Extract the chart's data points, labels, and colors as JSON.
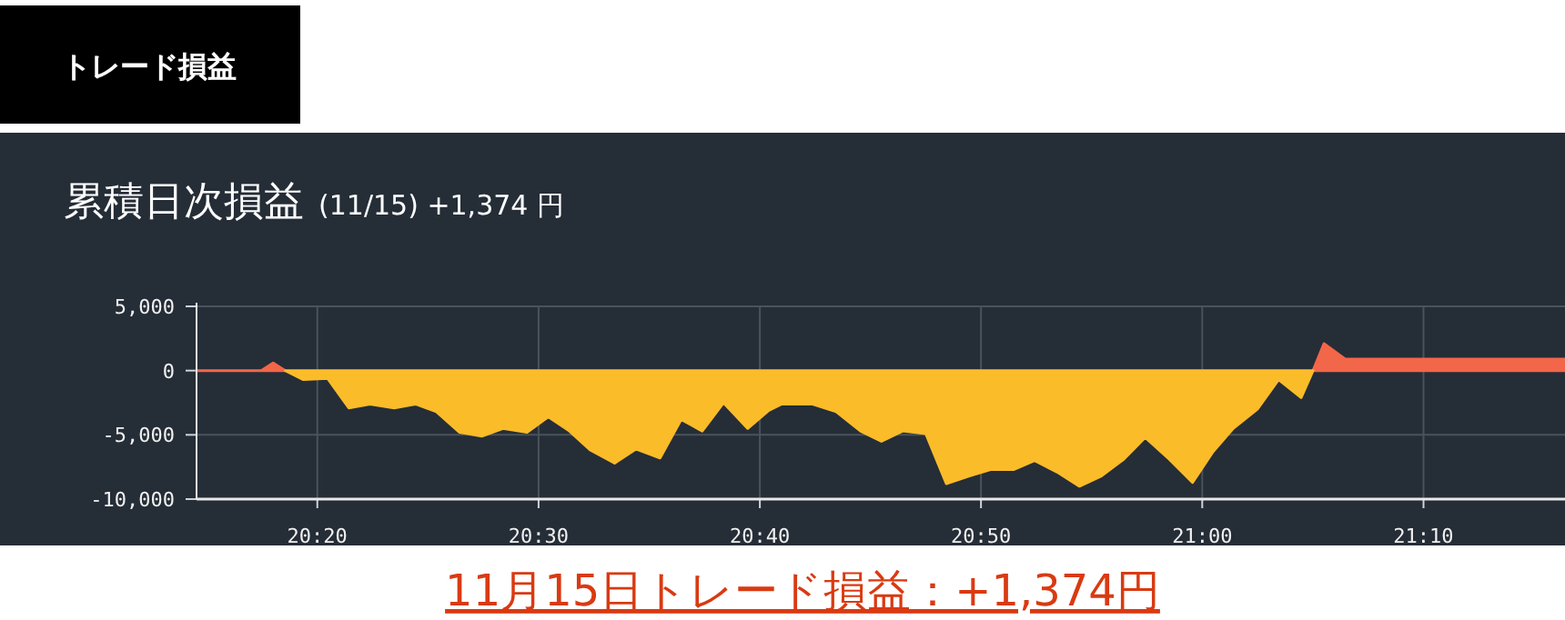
{
  "chart_data": {
    "type": "area",
    "title": "累積日次損益",
    "subtitle": "(11/15) +1,374 円",
    "annotations": [
      "トレード損益",
      "11月15日トレード損益：+1,374円"
    ],
    "xlim": [
      20.2423,
      21.2733
    ],
    "xticks": [
      {
        "value": 20.3333,
        "label": "20:20"
      },
      {
        "value": 20.5,
        "label": "20:30"
      },
      {
        "value": 20.6667,
        "label": "20:40"
      },
      {
        "value": 20.8333,
        "label": "20:50"
      },
      {
        "value": 21.0,
        "label": "21:00"
      },
      {
        "value": 21.1667,
        "label": "21:10"
      }
    ],
    "ylim": [
      -10000,
      5000
    ],
    "yticks": [
      {
        "value": 5000,
        "label": "5,000"
      },
      0,
      {
        "value": -5000,
        "label": "-5,000"
      },
      {
        "value": -10000,
        "label": "-10,000"
      }
    ],
    "grid": true,
    "series": [
      {
        "color": "#f26649",
        "x": [
          20.2423,
          20.291,
          20.3,
          20.3092
        ],
        "values": [
          0,
          0,
          600,
          0
        ]
      },
      {
        "color": "#f26649",
        "x": [
          21.0835,
          21.0917,
          21.1077,
          21.2733
        ],
        "values": [
          0,
          2100,
          900,
          900
        ]
      },
      {
        "color": "#fbbc2a",
        "x": [
          20.3092,
          20.3228,
          20.341,
          20.357,
          20.373,
          20.3912,
          20.4072,
          20.423,
          20.4403,
          20.4572,
          20.4732,
          20.4913,
          20.5073,
          20.5232,
          20.5392,
          20.5573,
          20.5733,
          20.5915,
          20.6075,
          20.6233,
          20.6393,
          20.6575,
          20.6735,
          20.6832,
          20.706,
          20.7242,
          20.7425,
          20.7583,
          20.7743,
          20.7917,
          20.8072,
          20.8245,
          20.8405,
          20.8578,
          20.8737,
          20.8907,
          20.9075,
          20.924,
          20.9408,
          20.957,
          20.9752,
          20.9927,
          21.0082,
          21.0233,
          21.0415,
          21.0575,
          21.0745,
          21.0835
        ],
        "values": [
          0,
          -700,
          -600,
          -2900,
          -2600,
          -2900,
          -2600,
          -3200,
          -4800,
          -5100,
          -4500,
          -4800,
          -3600,
          -4700,
          -6200,
          -7200,
          -6100,
          -6800,
          -3800,
          -4700,
          -2500,
          -4500,
          -3100,
          -2600,
          -2600,
          -3200,
          -4700,
          -5500,
          -4700,
          -4900,
          -8800,
          -8200,
          -7700,
          -7700,
          -7000,
          -7900,
          -9000,
          -8200,
          -6900,
          -5200,
          -6900,
          -8700,
          -6300,
          -4500,
          -3000,
          -700,
          -2100,
          0
        ]
      }
    ]
  }
}
